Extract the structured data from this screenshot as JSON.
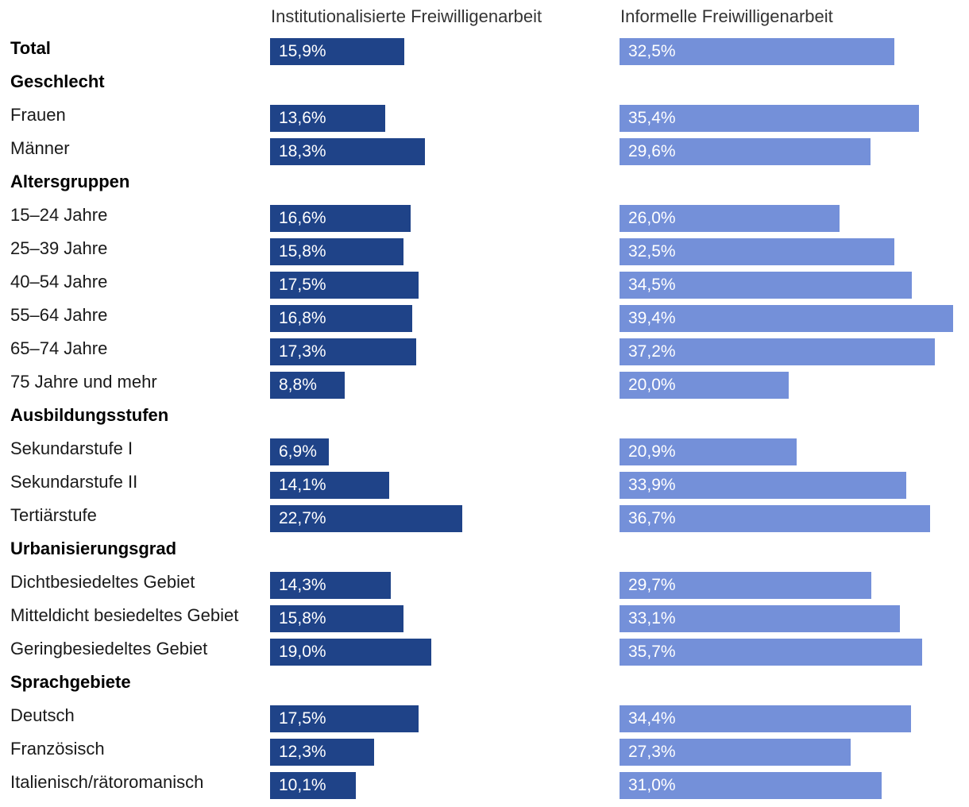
{
  "chart_data": {
    "type": "bar",
    "orientation": "horizontal",
    "series": [
      {
        "name": "Institutionalisierte Freiwilligenarbeit",
        "color": "#1f4388"
      },
      {
        "name": "Informelle Freiwilligenarbeit",
        "color": "#7490d9"
      }
    ],
    "xlim": [
      0,
      39.4
    ],
    "rows": [
      {
        "label": "Total",
        "header": true,
        "values": [
          15.9,
          32.5
        ],
        "value_labels": [
          "15,9%",
          "32,5%"
        ]
      },
      {
        "label": "Geschlecht",
        "header": true
      },
      {
        "label": "Frauen",
        "values": [
          13.6,
          35.4
        ],
        "value_labels": [
          "13,6%",
          "35,4%"
        ]
      },
      {
        "label": "Männer",
        "values": [
          18.3,
          29.6
        ],
        "value_labels": [
          "18,3%",
          "29,6%"
        ]
      },
      {
        "label": "Altersgruppen",
        "header": true
      },
      {
        "label": "15–24 Jahre",
        "values": [
          16.6,
          26.0
        ],
        "value_labels": [
          "16,6%",
          "26,0%"
        ]
      },
      {
        "label": "25–39 Jahre",
        "values": [
          15.8,
          32.5
        ],
        "value_labels": [
          "15,8%",
          "32,5%"
        ]
      },
      {
        "label": "40–54 Jahre",
        "values": [
          17.5,
          34.5
        ],
        "value_labels": [
          "17,5%",
          "34,5%"
        ]
      },
      {
        "label": "55–64 Jahre",
        "values": [
          16.8,
          39.4
        ],
        "value_labels": [
          "16,8%",
          "39,4%"
        ]
      },
      {
        "label": "65–74 Jahre",
        "values": [
          17.3,
          37.2
        ],
        "value_labels": [
          "17,3%",
          "37,2%"
        ]
      },
      {
        "label": "75 Jahre und mehr",
        "values": [
          8.8,
          20.0
        ],
        "value_labels": [
          "8,8%",
          "20,0%"
        ]
      },
      {
        "label": "Ausbildungsstufen",
        "header": true
      },
      {
        "label": "Sekundarstufe I",
        "values": [
          6.9,
          20.9
        ],
        "value_labels": [
          "6,9%",
          "20,9%"
        ]
      },
      {
        "label": "Sekundarstufe II",
        "values": [
          14.1,
          33.9
        ],
        "value_labels": [
          "14,1%",
          "33,9%"
        ]
      },
      {
        "label": "Tertiärstufe",
        "values": [
          22.7,
          36.7
        ],
        "value_labels": [
          "22,7%",
          "36,7%"
        ]
      },
      {
        "label": "Urbanisierungsgrad",
        "header": true
      },
      {
        "label": "Dichtbesiedeltes Gebiet",
        "values": [
          14.3,
          29.7
        ],
        "value_labels": [
          "14,3%",
          "29,7%"
        ]
      },
      {
        "label": "Mitteldicht besiedeltes Gebiet",
        "values": [
          15.8,
          33.1
        ],
        "value_labels": [
          "15,8%",
          "33,1%"
        ]
      },
      {
        "label": "Geringbesiedeltes Gebiet",
        "values": [
          19.0,
          35.7
        ],
        "value_labels": [
          "19,0%",
          "35,7%"
        ]
      },
      {
        "label": "Sprachgebiete",
        "header": true
      },
      {
        "label": "Deutsch",
        "values": [
          17.5,
          34.4
        ],
        "value_labels": [
          "17,5%",
          "34,4%"
        ]
      },
      {
        "label": "Französisch",
        "values": [
          12.3,
          27.3
        ],
        "value_labels": [
          "12,3%",
          "27,3%"
        ]
      },
      {
        "label": "Italienisch/rätoromanisch",
        "values": [
          10.1,
          31.0
        ],
        "value_labels": [
          "10,1%",
          "31,0%"
        ]
      }
    ]
  }
}
